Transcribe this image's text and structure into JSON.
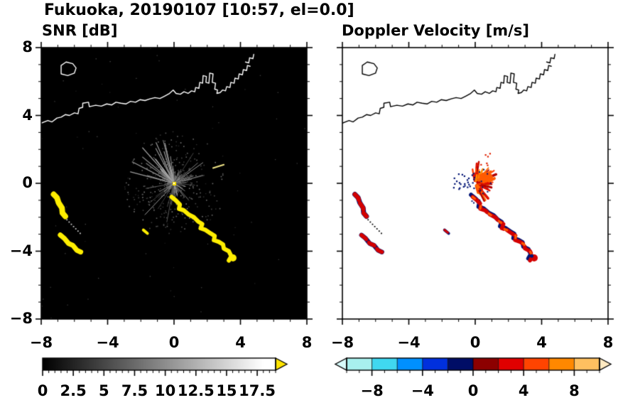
{
  "header": {
    "title": "Fukuoka, 20190107 [10:57, el=0.0]"
  },
  "chart_data": {
    "type": "heatmap",
    "title": "Fukuoka, 20190107 [10:57, el=0.0]",
    "panels": [
      {
        "id": "snr",
        "title": "SNR [dB]",
        "background": "#000000",
        "coast_color": "#ffffff",
        "units": "dB"
      },
      {
        "id": "doppler",
        "title": "Doppler Velocity [m/s]",
        "background": "#ffffff",
        "coast_color": "#000000",
        "units": "m/s"
      }
    ],
    "axes": {
      "xlim": [
        -8,
        8
      ],
      "ylim": [
        -8,
        8
      ],
      "major_ticks": [
        -8,
        -4,
        0,
        4,
        8
      ],
      "x_tick_labels": [
        "−8",
        "−4",
        "0",
        "4",
        "8"
      ],
      "y_tick_values": [
        8,
        4,
        0,
        -4,
        -8
      ],
      "y_tick_labels": [
        "8",
        "4",
        "0",
        "−4",
        "−8"
      ],
      "minor_tick_step": 1
    },
    "radar_center": [
      0,
      0
    ],
    "coastline": {
      "main": [
        [
          -8,
          3.55
        ],
        [
          -7.6,
          3.7
        ],
        [
          -7.35,
          3.62
        ],
        [
          -7.05,
          3.85
        ],
        [
          -6.8,
          3.9
        ],
        [
          -6.55,
          4.05
        ],
        [
          -6.3,
          4.0
        ],
        [
          -6.0,
          4.15
        ],
        [
          -5.78,
          4.1
        ],
        [
          -5.72,
          4.42
        ],
        [
          -5.5,
          4.48
        ],
        [
          -5.5,
          4.72
        ],
        [
          -5.15,
          4.78
        ],
        [
          -5.1,
          4.52
        ],
        [
          -4.72,
          4.6
        ],
        [
          -4.38,
          4.55
        ],
        [
          -4.05,
          4.68
        ],
        [
          -3.75,
          4.62
        ],
        [
          -3.5,
          4.78
        ],
        [
          -3.2,
          4.72
        ],
        [
          -2.9,
          4.68
        ],
        [
          -2.62,
          4.83
        ],
        [
          -2.32,
          4.78
        ],
        [
          -2.05,
          4.93
        ],
        [
          -1.75,
          4.88
        ],
        [
          -1.45,
          4.98
        ],
        [
          -1.15,
          5.05
        ],
        [
          -0.85,
          5.0
        ],
        [
          -0.55,
          5.15
        ],
        [
          -0.3,
          5.28
        ],
        [
          -0.05,
          5.5
        ],
        [
          0.12,
          5.3
        ],
        [
          0.38,
          5.25
        ],
        [
          0.6,
          5.4
        ],
        [
          0.85,
          5.3
        ],
        [
          1.05,
          5.45
        ],
        [
          1.25,
          5.4
        ],
        [
          1.3,
          5.65
        ],
        [
          1.5,
          5.6
        ],
        [
          1.55,
          5.95
        ],
        [
          1.72,
          5.9
        ],
        [
          1.75,
          6.35
        ],
        [
          1.95,
          6.3
        ],
        [
          1.92,
          5.95
        ],
        [
          2.1,
          5.9
        ],
        [
          2.15,
          6.5
        ],
        [
          2.35,
          6.45
        ],
        [
          2.3,
          5.95
        ],
        [
          2.5,
          5.9
        ],
        [
          2.45,
          5.55
        ],
        [
          2.62,
          5.5
        ],
        [
          2.58,
          5.3
        ],
        [
          2.78,
          5.35
        ],
        [
          2.92,
          5.5
        ],
        [
          3.1,
          5.45
        ],
        [
          3.17,
          5.7
        ],
        [
          3.37,
          5.65
        ],
        [
          3.42,
          5.95
        ],
        [
          3.62,
          5.9
        ],
        [
          3.67,
          6.2
        ],
        [
          3.87,
          6.15
        ],
        [
          3.92,
          6.45
        ],
        [
          4.12,
          6.4
        ],
        [
          4.17,
          6.7
        ],
        [
          4.37,
          6.65
        ],
        [
          4.42,
          6.95
        ],
        [
          4.58,
          6.9
        ]
      ],
      "island": [
        [
          -6.8,
          6.45
        ],
        [
          -6.4,
          6.35
        ],
        [
          -6.0,
          6.5
        ],
        [
          -5.9,
          6.8
        ],
        [
          -6.1,
          7.05
        ],
        [
          -6.5,
          7.15
        ],
        [
          -6.8,
          6.95
        ]
      ],
      "spit": [
        [
          4.3,
          7.15
        ],
        [
          4.5,
          7.1
        ],
        [
          4.55,
          7.4
        ],
        [
          4.75,
          7.35
        ],
        [
          4.8,
          7.6
        ]
      ]
    },
    "echoes": {
      "arc_main": [
        [
          -0.15,
          -0.8
        ],
        [
          0.1,
          -1.0
        ],
        [
          0.35,
          -1.25
        ],
        [
          0.3,
          -1.5
        ],
        [
          0.6,
          -1.6
        ],
        [
          0.9,
          -1.85
        ],
        [
          1.2,
          -2.0
        ],
        [
          1.45,
          -2.25
        ],
        [
          1.7,
          -2.4
        ],
        [
          1.6,
          -2.65
        ],
        [
          1.9,
          -2.75
        ],
        [
          2.2,
          -2.95
        ],
        [
          2.45,
          -3.1
        ],
        [
          2.4,
          -3.35
        ],
        [
          2.7,
          -3.45
        ],
        [
          2.95,
          -3.6
        ],
        [
          3.0,
          -3.85
        ],
        [
          3.3,
          -4.0
        ],
        [
          3.45,
          -4.3
        ],
        [
          3.3,
          -4.55
        ]
      ],
      "blob_left_upper": [
        [
          -7.25,
          -0.65
        ],
        [
          -7.05,
          -0.85
        ],
        [
          -6.95,
          -1.15
        ],
        [
          -6.75,
          -1.45
        ],
        [
          -6.72,
          -1.75
        ],
        [
          -6.55,
          -1.95
        ]
      ],
      "blob_left_lower": [
        [
          -6.85,
          -3.05
        ],
        [
          -6.6,
          -3.25
        ],
        [
          -6.35,
          -3.55
        ],
        [
          -6.1,
          -3.65
        ],
        [
          -5.85,
          -3.95
        ],
        [
          -5.62,
          -4.05
        ]
      ],
      "dash_small": [
        [
          -1.85,
          -2.75
        ],
        [
          -1.6,
          -2.95
        ]
      ],
      "streak_upper_right": [
        [
          2.35,
          0.9
        ],
        [
          3.0,
          1.1
        ]
      ],
      "gray_ray": [
        [
          -0.2,
          -0.25
        ],
        [
          -1.75,
          -1.85
        ]
      ],
      "arc_end_blob": [
        3.55,
        -4.4
      ],
      "dotted_track": [
        [
          -6.45,
          -2.15
        ],
        [
          -5.65,
          -2.95
        ]
      ]
    },
    "snr": {
      "echo_color": "#ffee00",
      "center_color": "#ffe400",
      "noise": {
        "seed": 7,
        "speckles": 430,
        "streaks": 95,
        "max_radius": 3.1
      }
    },
    "doppler": {
      "body_color": "#d40000",
      "negative_color": "#001374",
      "accent_color": "#ff5c00",
      "fan": {
        "seed": 11,
        "count": 85,
        "angle_min_deg": -75,
        "angle_max_deg": 115,
        "max_radius": 1.7,
        "colors": [
          "#b40000",
          "#e01000",
          "#ff3c00",
          "#ff6a00",
          "#ff8e00"
        ]
      },
      "blue_specks": 26,
      "red_specks": 8
    },
    "colorbars": {
      "snr": {
        "vmin": 0,
        "vmax": 19,
        "gradient_white_at": 18,
        "minor_step": 0.5,
        "major_step": 2.5,
        "arrow_color": "#ffe400",
        "values": [
          0,
          2.5,
          5,
          7.5,
          10,
          12.5,
          15,
          17.5
        ],
        "labels": [
          "0",
          "2.5",
          "5",
          "7.5",
          "10",
          "12.5",
          "15",
          "17.5"
        ]
      },
      "doppler": {
        "vmin": -10,
        "vmax": 10,
        "minor_step": 1,
        "major_step": 4,
        "arrow_left_color": "#d8fbfa",
        "arrow_right_color": "#ffeac2",
        "segments": [
          {
            "from": -10,
            "to": -8,
            "color": "#a8f0ee"
          },
          {
            "from": -8,
            "to": -6,
            "color": "#40d8f0"
          },
          {
            "from": -6,
            "to": -4,
            "color": "#0090ff"
          },
          {
            "from": -4,
            "to": -2,
            "color": "#0030dd"
          },
          {
            "from": -2,
            "to": 0,
            "color": "#000d66"
          },
          {
            "from": 0,
            "to": 2,
            "color": "#8c0000"
          },
          {
            "from": 2,
            "to": 4,
            "color": "#e00000"
          },
          {
            "from": 4,
            "to": 6,
            "color": "#ff4400"
          },
          {
            "from": 6,
            "to": 8,
            "color": "#ff8800"
          },
          {
            "from": 8,
            "to": 10,
            "color": "#ffc060"
          }
        ],
        "values": [
          -8,
          -4,
          0,
          4,
          8
        ],
        "labels": [
          "−8",
          "−4",
          "0",
          "4",
          "8"
        ]
      }
    }
  }
}
